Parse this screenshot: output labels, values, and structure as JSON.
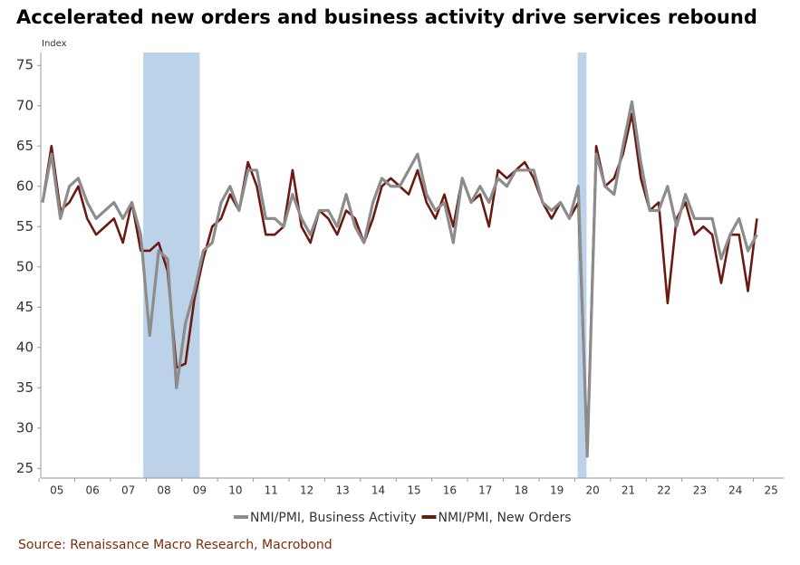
{
  "chart_data": {
    "type": "line",
    "title": "Accelerated new orders and business activity drive services rebound",
    "y_label": "Index",
    "source": "Source: Renaissance Macro Research, Macrobond",
    "x": [
      2005.1,
      2005.35,
      2005.6,
      2005.85,
      2006.1,
      2006.35,
      2006.6,
      2006.85,
      2007.1,
      2007.35,
      2007.6,
      2007.85,
      2008.1,
      2008.35,
      2008.6,
      2008.85,
      2009.1,
      2009.35,
      2009.6,
      2009.85,
      2010.1,
      2010.35,
      2010.6,
      2010.85,
      2011.1,
      2011.35,
      2011.6,
      2011.85,
      2012.1,
      2012.35,
      2012.6,
      2012.85,
      2013.1,
      2013.35,
      2013.6,
      2013.85,
      2014.1,
      2014.35,
      2014.6,
      2014.85,
      2015.1,
      2015.35,
      2015.6,
      2015.85,
      2016.1,
      2016.35,
      2016.6,
      2016.85,
      2017.1,
      2017.35,
      2017.6,
      2017.85,
      2018.1,
      2018.35,
      2018.6,
      2018.85,
      2019.1,
      2019.35,
      2019.6,
      2019.85,
      2020.1,
      2020.35,
      2020.6,
      2020.85,
      2021.1,
      2021.35,
      2021.6,
      2021.85,
      2022.1,
      2022.35,
      2022.6,
      2022.85,
      2023.1,
      2023.35,
      2023.6,
      2023.85,
      2024.1,
      2024.35,
      2024.6,
      2024.85,
      2025.1
    ],
    "series": [
      {
        "name": "NMI/PMI, New Orders",
        "color": "#6b1a10",
        "values": [
          58,
          65,
          57,
          58,
          60,
          56,
          54,
          55,
          56,
          53,
          58,
          52,
          52,
          53,
          49.5,
          37.5,
          38,
          46,
          51,
          55,
          56,
          59,
          57,
          63,
          60,
          54,
          54,
          55,
          62,
          55,
          53,
          57,
          56,
          54,
          57,
          56,
          53,
          56,
          60,
          61,
          60,
          59,
          62,
          58,
          56,
          59,
          55,
          61,
          58,
          59,
          55,
          62,
          61,
          62,
          63,
          61,
          58,
          56,
          58,
          56,
          58,
          27,
          65,
          60,
          61,
          64,
          69,
          61,
          57,
          58,
          45.5,
          56,
          58,
          54,
          55,
          54,
          48,
          54,
          54,
          47,
          56
        ]
      },
      {
        "name": "NMI/PMI, Business Activity",
        "color": "#8c8c8c",
        "values": [
          58,
          64,
          56,
          60,
          61,
          58,
          56,
          57,
          58,
          56,
          58,
          54,
          41.5,
          52,
          51,
          35,
          43,
          47,
          52,
          53,
          58,
          60,
          57,
          62,
          62,
          56,
          56,
          55,
          59,
          56,
          54,
          57,
          57,
          55,
          59,
          55,
          53,
          58,
          61,
          60,
          60,
          62,
          64,
          59,
          57,
          58,
          53,
          61,
          58,
          60,
          58,
          61,
          60,
          62,
          62,
          62,
          58,
          57,
          58,
          56,
          60,
          26.5,
          64,
          60,
          59,
          65,
          70.5,
          63,
          57,
          57,
          60,
          55,
          59,
          56,
          56,
          56,
          51,
          54,
          56,
          52,
          54
        ]
      }
    ],
    "shading": [
      [
        2007.92,
        2009.5
      ],
      [
        2020.08,
        2020.33
      ]
    ],
    "shading_color": "#bcd2e8",
    "xlim": [
      2005.05,
      2025.85
    ],
    "xticks": [
      {
        "value": 2005.5,
        "label": "05"
      },
      {
        "value": 2006.5,
        "label": "06"
      },
      {
        "value": 2007.5,
        "label": "07"
      },
      {
        "value": 2008.5,
        "label": "08"
      },
      {
        "value": 2009.5,
        "label": "09"
      },
      {
        "value": 2010.5,
        "label": "10"
      },
      {
        "value": 2011.5,
        "label": "11"
      },
      {
        "value": 2012.5,
        "label": "12"
      },
      {
        "value": 2013.5,
        "label": "13"
      },
      {
        "value": 2014.5,
        "label": "14"
      },
      {
        "value": 2015.5,
        "label": "15"
      },
      {
        "value": 2016.5,
        "label": "16"
      },
      {
        "value": 2017.5,
        "label": "17"
      },
      {
        "value": 2018.5,
        "label": "18"
      },
      {
        "value": 2019.5,
        "label": "19"
      },
      {
        "value": 2020.5,
        "label": "20"
      },
      {
        "value": 2021.5,
        "label": "21"
      },
      {
        "value": 2022.5,
        "label": "22"
      },
      {
        "value": 2023.5,
        "label": "23"
      },
      {
        "value": 2024.5,
        "label": "24"
      },
      {
        "value": 2025.5,
        "label": "25"
      }
    ],
    "ylim": [
      23.8,
      76.6
    ],
    "yticks": [
      25,
      30,
      35,
      40,
      45,
      50,
      55,
      60,
      65,
      70,
      75
    ],
    "legend_order": [
      1,
      0
    ]
  }
}
